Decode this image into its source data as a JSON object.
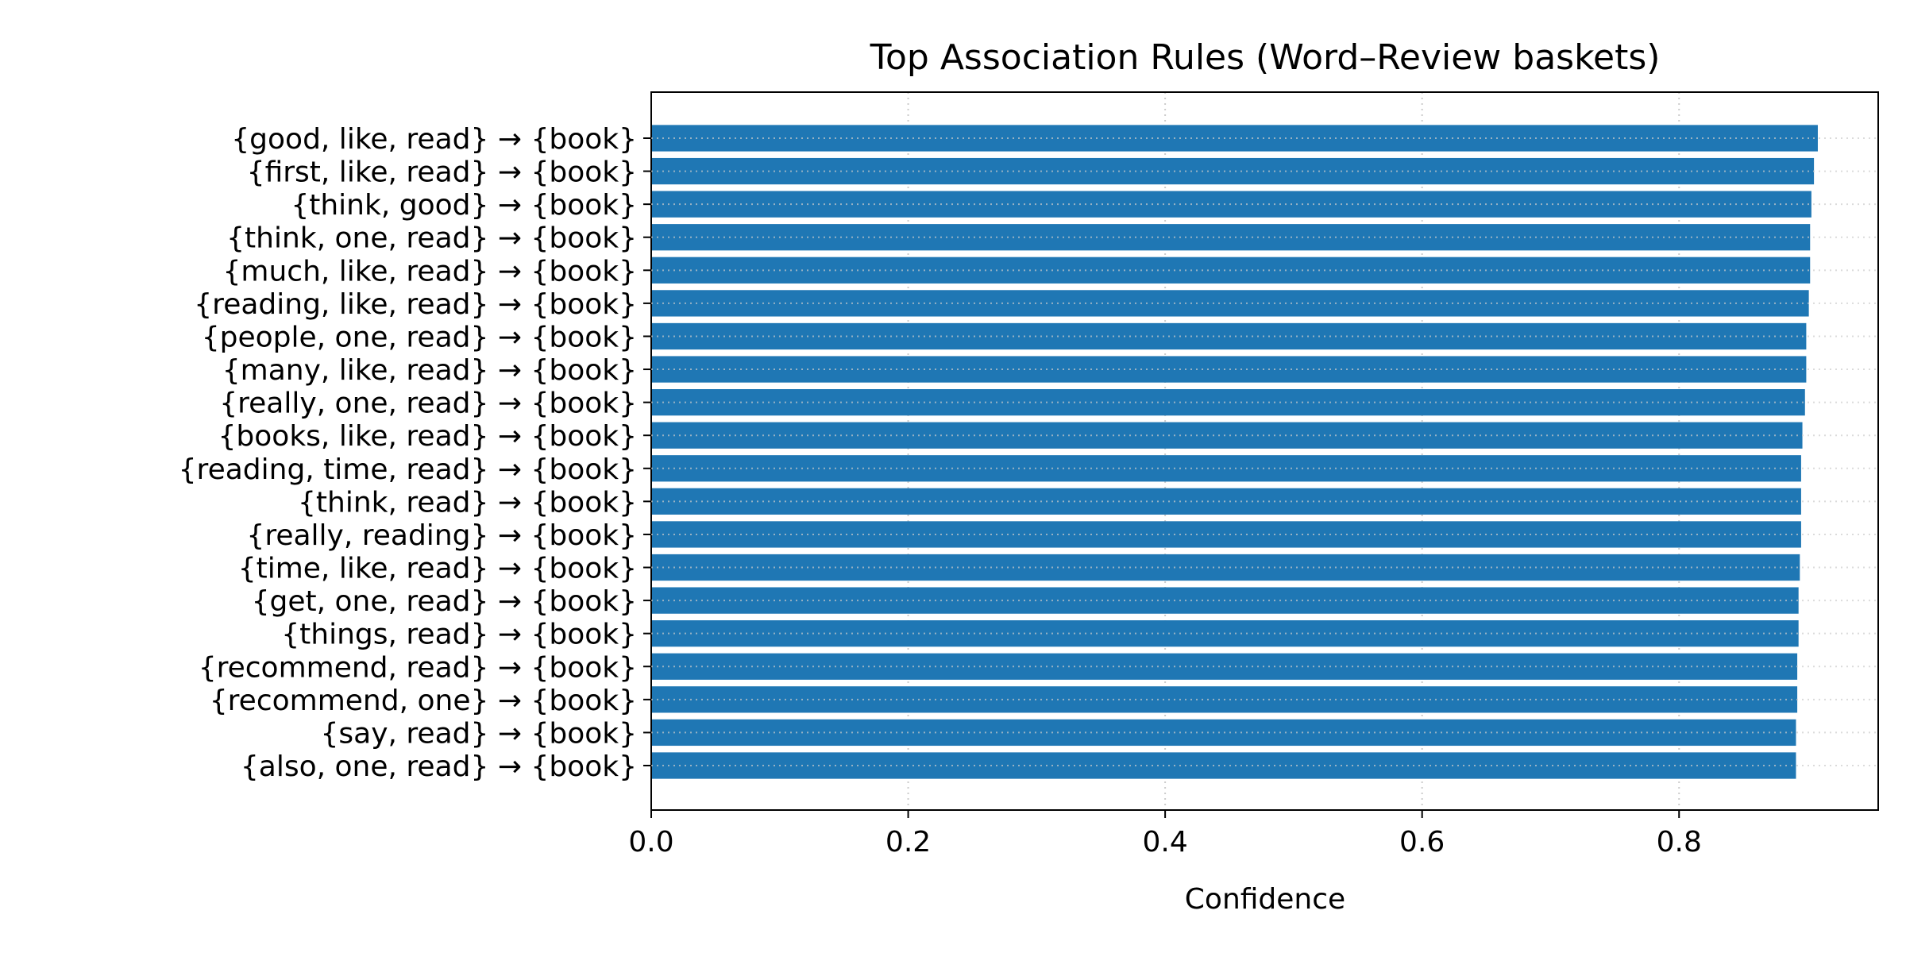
{
  "chart_data": {
    "type": "bar",
    "orientation": "horizontal",
    "title": "Top Association Rules (Word–Review baskets)",
    "xlabel": "Confidence",
    "ylabel": "",
    "xlim": [
      0,
      0.955
    ],
    "xticks": [
      0.0,
      0.2,
      0.4,
      0.6,
      0.8
    ],
    "xtick_labels": [
      "0.0",
      "0.2",
      "0.4",
      "0.6",
      "0.8"
    ],
    "grid": "x, dotted",
    "bar_color": "#1f77b4",
    "categories": [
      "{good, like, read} → {book}",
      "{first, like, read} → {book}",
      "{think, good} → {book}",
      "{think, one, read} → {book}",
      "{much, like, read} → {book}",
      "{reading, like, read} → {book}",
      "{people, one, read} → {book}",
      "{many, like, read} → {book}",
      "{really, one, read} → {book}",
      "{books, like, read} → {book}",
      "{reading, time, read} → {book}",
      "{think, read} → {book}",
      "{really, reading} → {book}",
      "{time, like, read} → {book}",
      "{get, one, read} → {book}",
      "{things, read} → {book}",
      "{recommend, read} → {book}",
      "{recommend, one} → {book}",
      "{say, read} → {book}",
      "{also, one, read} → {book}"
    ],
    "values": [
      0.908,
      0.905,
      0.903,
      0.902,
      0.902,
      0.901,
      0.899,
      0.899,
      0.898,
      0.896,
      0.895,
      0.895,
      0.895,
      0.894,
      0.893,
      0.893,
      0.892,
      0.892,
      0.891,
      0.891
    ]
  }
}
